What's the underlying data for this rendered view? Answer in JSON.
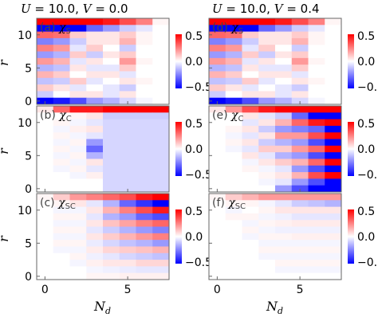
{
  "chart_data": {
    "type": "heatmap",
    "colormap": {
      "negative": "#0000ff",
      "zero": "#ffffff",
      "positive": "#ff0000"
    },
    "column_titles": [
      "U = 10.0, V = 0.0",
      "U = 10.0, V = 0.4"
    ],
    "title_parts": {
      "left": {
        "u_sym": "U",
        "u_val": " = 10.0, ",
        "v_sym": "V",
        "v_val": " = 0.0"
      },
      "right": {
        "u_sym": "U",
        "u_val": " = 10.0, ",
        "v_sym": "V",
        "v_val": " = 0.4"
      }
    },
    "ylabel": "r",
    "xlabel": "N_d",
    "xlabel_parts": {
      "main": "N",
      "sub": "d"
    },
    "xlim": [
      -0.5,
      7.5
    ],
    "ylim": [
      -0.5,
      12.5
    ],
    "xticks": [
      "0",
      "5"
    ],
    "yticks": [
      "0",
      "5",
      "10"
    ],
    "colorbar": {
      "range": [
        -0.5,
        0.5
      ],
      "ticks": [
        "0.5",
        "0.0",
        "−0.5"
      ]
    },
    "panels": [
      {
        "label": "(a)",
        "symbol": "χ",
        "sub": "S",
        "rows": [
          [
            0.52,
            0.55,
            0.55,
            0.5,
            0.45,
            0.35,
            0.25,
            0.02
          ],
          [
            -0.55,
            -0.5,
            -0.5,
            -0.3,
            -0.2,
            -0.1,
            -0.05,
            0.0
          ],
          [
            0.3,
            0.28,
            0.1,
            0.05,
            0.05,
            0.1,
            0.02,
            0.0
          ],
          [
            -0.25,
            -0.2,
            -0.1,
            0.05,
            0.05,
            0.15,
            0.02,
            0.0
          ],
          [
            0.25,
            0.2,
            -0.05,
            0.1,
            0.0,
            -0.1,
            0.0,
            0.0
          ],
          [
            -0.2,
            -0.15,
            0.1,
            -0.1,
            0.05,
            0.1,
            0.0,
            0.0
          ],
          [
            0.2,
            0.15,
            -0.05,
            0.05,
            0.0,
            0.2,
            0.02,
            0.0
          ],
          [
            -0.15,
            -0.12,
            0.05,
            -0.05,
            -0.05,
            0.1,
            0.0,
            0.0
          ],
          [
            0.15,
            0.1,
            0.0,
            0.05,
            0.05,
            -0.05,
            0.0,
            0.0
          ],
          [
            -0.12,
            -0.1,
            0.1,
            -0.05,
            0.0,
            0.05,
            0.02,
            0.0
          ],
          [
            0.1,
            0.05,
            -0.05,
            0.0,
            -0.05,
            -0.1,
            0.0,
            0.0
          ],
          [
            -0.1,
            0.0,
            0.05,
            0.05,
            -0.05,
            0.05,
            0.0,
            0.0
          ],
          [
            -0.6,
            -0.45,
            -0.35,
            -0.2,
            -0.15,
            -0.08,
            -0.02,
            0.0
          ]
        ]
      },
      {
        "label": "(b)",
        "symbol": "χ",
        "sub": "C",
        "rows": [
          [
            0.05,
            0.3,
            0.45,
            0.45,
            0.6,
            0.6,
            0.6,
            0.6
          ],
          [
            0.0,
            0.0,
            0.02,
            0.05,
            -0.1,
            -0.1,
            -0.1,
            -0.1
          ],
          [
            0.0,
            0.02,
            -0.02,
            -0.05,
            -0.08,
            -0.08,
            -0.08,
            -0.08
          ],
          [
            0.0,
            -0.02,
            0.03,
            0.05,
            -0.08,
            -0.08,
            -0.08,
            -0.08
          ],
          [
            0.0,
            0.02,
            -0.02,
            -0.05,
            -0.08,
            -0.08,
            -0.08,
            -0.08
          ],
          [
            0.0,
            -0.02,
            0.02,
            -0.2,
            -0.08,
            -0.08,
            -0.08,
            -0.08
          ],
          [
            0.0,
            0.02,
            -0.02,
            -0.3,
            -0.08,
            -0.08,
            -0.08,
            -0.08
          ],
          [
            0.0,
            -0.02,
            0.02,
            -0.15,
            -0.08,
            -0.08,
            -0.08,
            -0.08
          ],
          [
            0.0,
            0.02,
            -0.02,
            0.05,
            -0.08,
            -0.08,
            -0.08,
            -0.08
          ],
          [
            0.0,
            -0.02,
            0.02,
            -0.05,
            -0.08,
            -0.08,
            -0.08,
            -0.08
          ],
          [
            0.0,
            0.0,
            -0.02,
            0.03,
            -0.08,
            -0.08,
            -0.08,
            -0.08
          ],
          [
            0.0,
            0.0,
            0.0,
            0.0,
            -0.08,
            -0.08,
            -0.08,
            -0.08
          ],
          [
            0.0,
            0.0,
            0.0,
            0.0,
            -0.08,
            -0.08,
            -0.08,
            -0.08
          ]
        ]
      },
      {
        "label": "(c)",
        "symbol": "χ",
        "sub": "SC",
        "rows": [
          [
            0.02,
            0.1,
            0.2,
            0.25,
            0.3,
            0.35,
            0.45,
            0.6
          ],
          [
            0.0,
            0.02,
            0.05,
            -0.05,
            -0.15,
            -0.3,
            -0.4,
            -0.5
          ],
          [
            0.0,
            -0.02,
            -0.02,
            0.05,
            0.15,
            0.25,
            0.35,
            0.45
          ],
          [
            0.0,
            0.02,
            0.02,
            -0.05,
            -0.15,
            -0.2,
            -0.3,
            -0.35
          ],
          [
            0.0,
            -0.02,
            -0.02,
            0.05,
            0.12,
            0.18,
            0.25,
            0.3
          ],
          [
            0.0,
            0.02,
            0.02,
            -0.05,
            -0.1,
            -0.15,
            -0.2,
            -0.25
          ],
          [
            0.0,
            -0.02,
            -0.02,
            0.05,
            0.1,
            0.15,
            0.2,
            0.25
          ],
          [
            0.0,
            0.02,
            0.02,
            -0.04,
            -0.08,
            -0.12,
            -0.15,
            -0.2
          ],
          [
            0.0,
            -0.02,
            -0.02,
            0.04,
            0.08,
            0.1,
            0.12,
            0.15
          ],
          [
            0.0,
            0.0,
            0.02,
            -0.03,
            -0.05,
            -0.08,
            -0.1,
            -0.12
          ],
          [
            0.0,
            0.0,
            -0.02,
            0.03,
            0.05,
            0.05,
            0.08,
            0.08
          ],
          [
            0.0,
            0.0,
            0.0,
            -0.02,
            -0.03,
            -0.04,
            -0.05,
            -0.05
          ],
          [
            0.0,
            0.0,
            0.0,
            0.02,
            0.02,
            0.03,
            0.03,
            0.03
          ]
        ]
      },
      {
        "label": "(d)",
        "symbol": "χ",
        "sub": "S",
        "rows": [
          [
            0.52,
            0.55,
            0.55,
            0.5,
            0.45,
            0.35,
            0.25,
            0.02
          ],
          [
            -0.55,
            -0.5,
            -0.5,
            -0.3,
            -0.2,
            -0.1,
            -0.05,
            0.0
          ],
          [
            0.3,
            0.28,
            0.1,
            0.05,
            0.05,
            0.1,
            0.02,
            0.0
          ],
          [
            -0.25,
            -0.2,
            -0.1,
            0.05,
            0.05,
            0.15,
            0.02,
            0.0
          ],
          [
            0.25,
            0.2,
            -0.05,
            0.1,
            0.0,
            -0.1,
            0.0,
            0.0
          ],
          [
            -0.2,
            -0.15,
            0.1,
            -0.1,
            0.05,
            0.1,
            0.0,
            0.0
          ],
          [
            0.2,
            0.15,
            -0.05,
            0.05,
            0.0,
            0.2,
            0.02,
            0.0
          ],
          [
            -0.15,
            -0.12,
            0.05,
            -0.05,
            -0.05,
            0.1,
            0.0,
            0.0
          ],
          [
            0.15,
            0.1,
            0.0,
            0.05,
            0.05,
            -0.05,
            0.0,
            0.0
          ],
          [
            -0.12,
            -0.1,
            0.1,
            -0.05,
            0.0,
            0.05,
            0.02,
            0.0
          ],
          [
            0.1,
            0.05,
            -0.05,
            0.0,
            -0.05,
            -0.1,
            0.0,
            0.0
          ],
          [
            -0.1,
            0.0,
            0.05,
            0.05,
            -0.05,
            0.05,
            0.0,
            0.0
          ],
          [
            -0.6,
            -0.45,
            -0.35,
            -0.2,
            -0.15,
            -0.08,
            -0.02,
            0.0
          ]
        ]
      },
      {
        "label": "(e)",
        "symbol": "χ",
        "sub": "C",
        "rows": [
          [
            0.05,
            0.2,
            0.35,
            0.45,
            0.6,
            0.7,
            0.8,
            0.8
          ],
          [
            0.0,
            0.0,
            0.05,
            -0.05,
            -0.1,
            -0.3,
            -0.5,
            -0.7
          ],
          [
            0.0,
            0.0,
            -0.05,
            0.05,
            0.15,
            0.3,
            0.45,
            0.8
          ],
          [
            0.0,
            0.02,
            0.05,
            -0.1,
            -0.2,
            -0.25,
            -0.3,
            -0.8
          ],
          [
            0.0,
            -0.02,
            -0.05,
            0.05,
            0.2,
            0.2,
            0.35,
            0.8
          ],
          [
            0.0,
            0.02,
            0.05,
            -0.1,
            -0.15,
            -0.2,
            -0.35,
            -0.8
          ],
          [
            0.0,
            -0.02,
            -0.05,
            0.1,
            0.1,
            0.2,
            0.3,
            0.8
          ],
          [
            0.0,
            0.0,
            0.05,
            -0.05,
            -0.15,
            -0.2,
            -0.35,
            -0.8
          ],
          [
            0.0,
            0.0,
            -0.02,
            0.05,
            0.1,
            0.15,
            0.3,
            0.8
          ],
          [
            0.0,
            0.0,
            0.02,
            -0.02,
            -0.05,
            -0.2,
            -0.35,
            -0.8
          ],
          [
            0.0,
            0.0,
            0.0,
            0.02,
            0.05,
            0.15,
            0.35,
            0.8
          ],
          [
            0.0,
            0.0,
            0.0,
            -0.02,
            -0.05,
            -0.2,
            -0.35,
            -0.8
          ],
          [
            0.0,
            0.0,
            0.0,
            0.0,
            -0.2,
            -0.35,
            -0.55,
            -0.8
          ]
        ]
      },
      {
        "label": "(f)",
        "symbol": "χ",
        "sub": "SC",
        "rows": [
          [
            0.02,
            0.1,
            0.15,
            0.2,
            0.2,
            0.2,
            0.2,
            0.2
          ],
          [
            0.0,
            0.02,
            0.02,
            -0.02,
            -0.05,
            -0.1,
            -0.12,
            -0.15
          ],
          [
            0.0,
            -0.02,
            0.0,
            0.02,
            0.05,
            0.05,
            0.05,
            0.05
          ],
          [
            0.0,
            0.02,
            0.02,
            -0.02,
            -0.03,
            -0.05,
            -0.05,
            -0.05
          ],
          [
            0.0,
            0.0,
            -0.02,
            0.02,
            0.03,
            0.04,
            0.04,
            0.04
          ],
          [
            0.0,
            0.0,
            0.02,
            -0.02,
            -0.03,
            -0.03,
            -0.03,
            -0.03
          ],
          [
            0.0,
            0.0,
            -0.02,
            0.02,
            0.02,
            0.03,
            0.03,
            0.03
          ],
          [
            0.0,
            0.0,
            0.0,
            -0.02,
            -0.02,
            -0.02,
            -0.02,
            -0.02
          ],
          [
            0.0,
            0.0,
            0.0,
            0.02,
            0.02,
            0.02,
            0.02,
            0.02
          ],
          [
            0.0,
            0.0,
            0.0,
            -0.02,
            -0.02,
            -0.02,
            -0.02,
            -0.02
          ],
          [
            0.0,
            0.0,
            0.0,
            0.0,
            0.02,
            0.02,
            0.02,
            0.02
          ],
          [
            0.0,
            0.0,
            0.0,
            0.0,
            -0.02,
            -0.02,
            -0.02,
            -0.02
          ],
          [
            0.0,
            0.0,
            0.0,
            0.0,
            0.0,
            0.0,
            0.0,
            0.0
          ]
        ]
      }
    ]
  }
}
